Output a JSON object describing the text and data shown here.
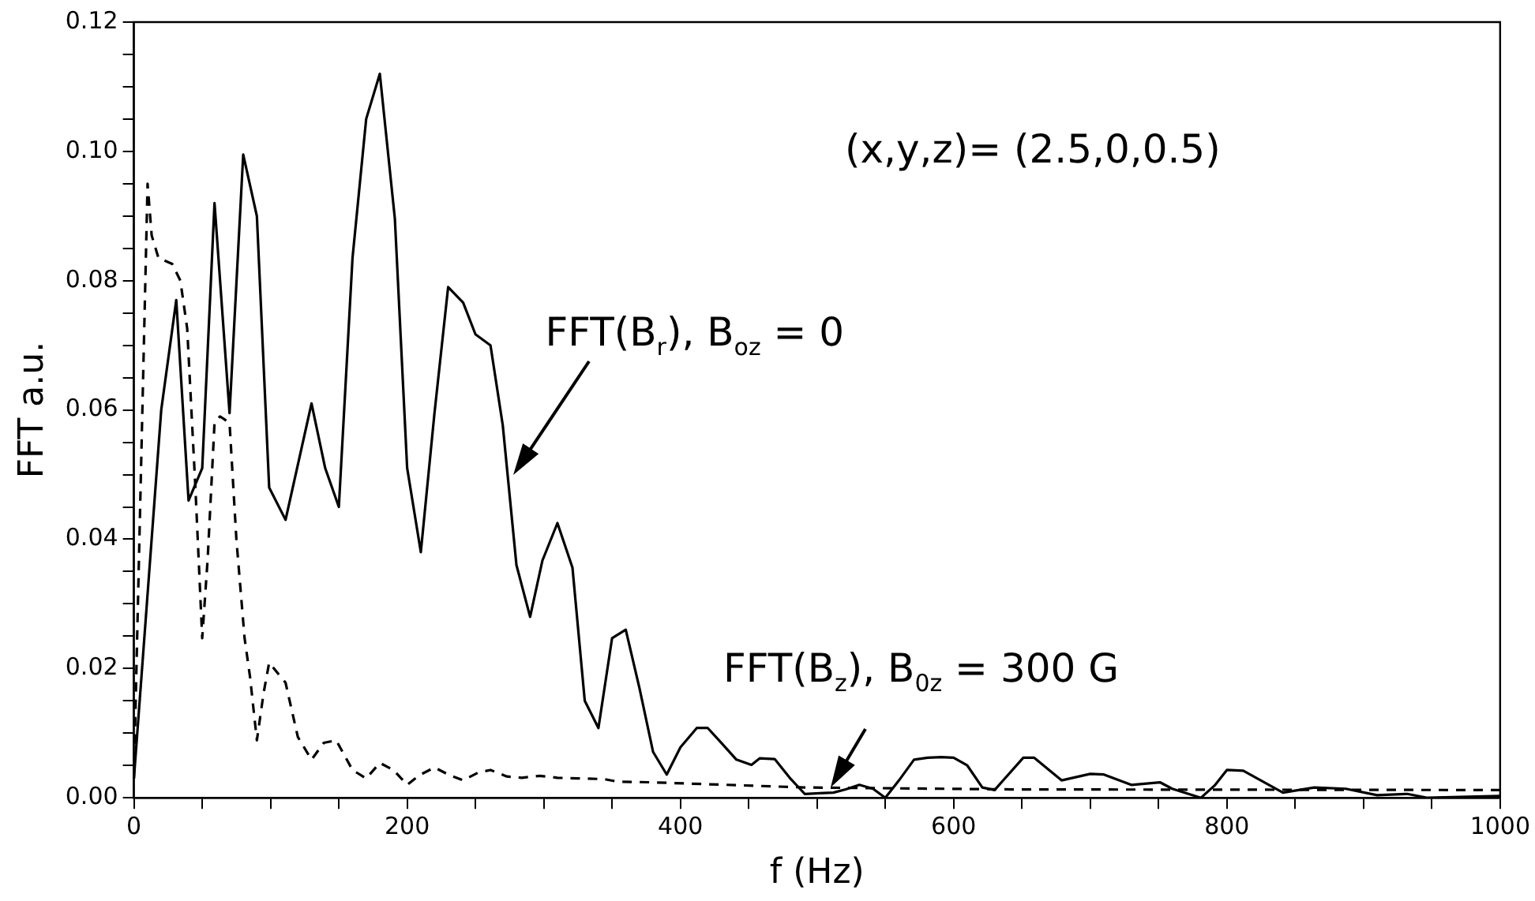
{
  "chart_data": {
    "type": "line",
    "xlabel": "f (Hz)",
    "ylabel": "FFT a.u.",
    "xlim": [
      0,
      1000
    ],
    "ylim": [
      0,
      0.12
    ],
    "xticks": [
      0,
      {
        "value": 50,
        "label": null
      },
      {
        "value": 100,
        "label": null
      },
      {
        "value": 150,
        "label": null
      },
      200,
      {
        "value": 250,
        "label": null
      },
      {
        "value": 300,
        "label": null
      },
      {
        "value": 350,
        "label": null
      },
      400,
      {
        "value": 450,
        "label": null
      },
      {
        "value": 500,
        "label": null
      },
      {
        "value": 550,
        "label": null
      },
      600,
      {
        "value": 650,
        "label": null
      },
      {
        "value": 700,
        "label": null
      },
      {
        "value": 750,
        "label": null
      },
      800,
      {
        "value": 850,
        "label": null
      },
      {
        "value": 900,
        "label": null
      },
      {
        "value": 950,
        "label": null
      },
      1000
    ],
    "yticks": [
      {
        "value": 0,
        "label": "0.00"
      },
      {
        "value": 0.005,
        "label": null
      },
      {
        "value": 0.01,
        "label": null
      },
      {
        "value": 0.015,
        "label": null
      },
      {
        "value": 0.02,
        "label": "0.02"
      },
      {
        "value": 0.025,
        "label": null
      },
      {
        "value": 0.03,
        "label": null
      },
      {
        "value": 0.035,
        "label": null
      },
      {
        "value": 0.04,
        "label": "0.04"
      },
      {
        "value": 0.045,
        "label": null
      },
      {
        "value": 0.05,
        "label": null
      },
      {
        "value": 0.055,
        "label": null
      },
      {
        "value": 0.06,
        "label": "0.06"
      },
      {
        "value": 0.065,
        "label": null
      },
      {
        "value": 0.07,
        "label": null
      },
      {
        "value": 0.075,
        "label": null
      },
      {
        "value": 0.08,
        "label": "0.08"
      },
      {
        "value": 0.085,
        "label": null
      },
      {
        "value": 0.09,
        "label": null
      },
      {
        "value": 0.095,
        "label": null
      },
      {
        "value": 0.1,
        "label": "0.10"
      },
      {
        "value": 0.105,
        "label": null
      },
      {
        "value": 0.11,
        "label": null
      },
      {
        "value": 0.115,
        "label": null
      },
      {
        "value": 0.12,
        "label": "0.12"
      }
    ],
    "grid": false,
    "legend": false,
    "marker": "none",
    "series": [
      {
        "color": "#000000",
        "line_style": "solid",
        "x": [
          0,
          20,
          31,
          40,
          50,
          59,
          70,
          80,
          90,
          99,
          111,
          130,
          140,
          150,
          160,
          170,
          180,
          191,
          200,
          210,
          220,
          230,
          241,
          250,
          261,
          270,
          280,
          290,
          299,
          310,
          321,
          330,
          340,
          350,
          360,
          370,
          380,
          390,
          400,
          412,
          420,
          430,
          441,
          452,
          458,
          469,
          480,
          491,
          502,
          512,
          521,
          531,
          541,
          550,
          560,
          571,
          581,
          591,
          600,
          610,
          621,
          630,
          651,
          659,
          679,
          700,
          710,
          730,
          751,
          760,
          781,
          791,
          800,
          812,
          841,
          864,
          887,
          910,
          932,
          947,
          1000
        ],
        "values": [
          0.003,
          0.06,
          0.077,
          0.046,
          0.051,
          0.092,
          0.0595,
          0.0995,
          0.09,
          0.048,
          0.043,
          0.061,
          0.051,
          0.045,
          0.0835,
          0.105,
          0.112,
          0.0896,
          0.051,
          0.038,
          0.0595,
          0.079,
          0.0766,
          0.0717,
          0.07,
          0.0576,
          0.036,
          0.028,
          0.0367,
          0.0425,
          0.0356,
          0.015,
          0.0108,
          0.0247,
          0.026,
          0.017,
          0.0071,
          0.0036,
          0.0078,
          0.0108,
          0.0108,
          0.0085,
          0.0059,
          0.0051,
          0.0061,
          0.006,
          0.0031,
          0.0006,
          0.0007,
          0.0008,
          0.0013,
          0.002,
          0.0014,
          0.0,
          0.0027,
          0.0059,
          0.0062,
          0.0063,
          0.0062,
          0.005,
          0.0016,
          0.0012,
          0.0062,
          0.0062,
          0.0027,
          0.0037,
          0.0036,
          0.002,
          0.0024,
          0.0014,
          0.0,
          0.0019,
          0.0043,
          0.0042,
          0.0008,
          0.0016,
          0.0014,
          0.0004,
          0.0006,
          0.0,
          0.0003
        ]
      },
      {
        "color": "#000000",
        "line_style": "dashed",
        "x": [
          0,
          10,
          13,
          18,
          28,
          34,
          39,
          45,
          50,
          54,
          59,
          63,
          70,
          75,
          81,
          85,
          90,
          95,
          99,
          111,
          120,
          130,
          139,
          148,
          160,
          170,
          180,
          190,
          200,
          209,
          220,
          231,
          241,
          252,
          261,
          273,
          284,
          297,
          310,
          325,
          344,
          354,
          378,
          491,
          642,
          1000
        ],
        "values": [
          0.003,
          0.095,
          0.087,
          0.0835,
          0.0826,
          0.08,
          0.0726,
          0.048,
          0.0247,
          0.037,
          0.058,
          0.059,
          0.058,
          0.04,
          0.0247,
          0.0187,
          0.0089,
          0.0163,
          0.0209,
          0.0178,
          0.0094,
          0.0059,
          0.0085,
          0.0089,
          0.0043,
          0.003,
          0.0054,
          0.0043,
          0.002,
          0.0035,
          0.0047,
          0.0035,
          0.0027,
          0.0039,
          0.0043,
          0.0033,
          0.0031,
          0.0034,
          0.0031,
          0.003,
          0.0029,
          0.0025,
          0.0024,
          0.0016,
          0.0013,
          0.0012
        ]
      }
    ],
    "annotations": [
      "(x,y,z)= (2.5,0,0.5)",
      {
        "text": "FFT(B$_{r}$), B$_{oz}$ = 0",
        "x": 278,
        "y": 0.05
      },
      {
        "text": "FFT(B$_{z}$), B$_{0z}$ = 300 G",
        "x": 510,
        "y": 0.0016
      }
    ]
  }
}
